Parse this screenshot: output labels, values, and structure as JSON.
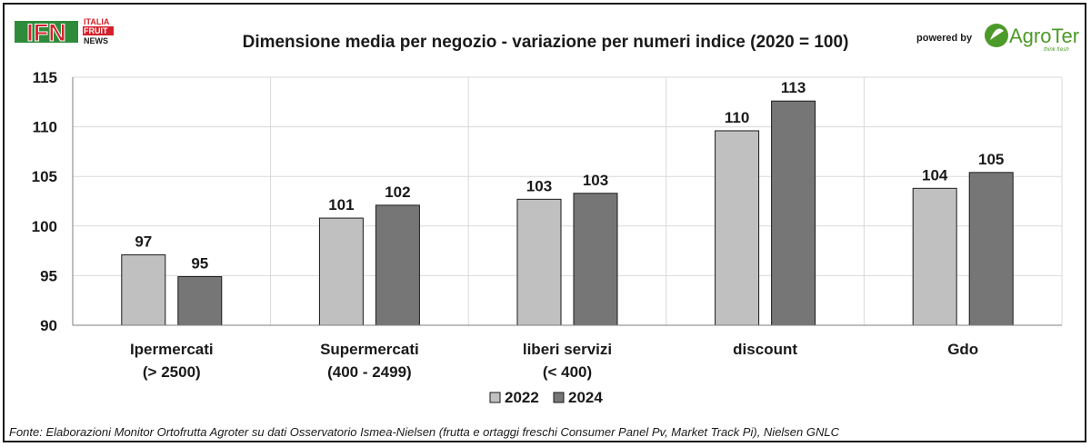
{
  "logo_left": {
    "letters": "IFN",
    "lines": [
      "ITALIA",
      "FRUIT",
      "NEWS"
    ],
    "colors": {
      "red": "#d4202a",
      "green": "#2e8b3a"
    }
  },
  "logo_right": {
    "powered_by": "powered by",
    "brand": "AgroTer",
    "tagline": "think fresh",
    "color": "#4c9a2a"
  },
  "source_note": "Fonte: Elaborazioni Monitor Ortofrutta Agroter su dati Osservatorio Ismea-Nielsen (frutta e ortaggi freschi  Consumer Panel Pv, Market Track Pi), Nielsen GNLC",
  "chart_data": {
    "type": "bar",
    "title": "Dimensione media per negozio - variazione per numeri indice (2020 = 100)",
    "categories": [
      [
        "Ipermercati",
        "(> 2500)"
      ],
      [
        "Supermercati",
        "(400 - 2499)"
      ],
      [
        "liberi servizi",
        "(< 400)"
      ],
      [
        "discount"
      ],
      [
        "Gdo"
      ]
    ],
    "series": [
      {
        "name": "2022",
        "color": "#c0c0c0",
        "values": [
          97.1,
          100.8,
          102.7,
          109.6,
          103.8
        ],
        "labels": [
          "97",
          "101",
          "103",
          "110",
          "104"
        ]
      },
      {
        "name": "2024",
        "color": "#767676",
        "values": [
          94.9,
          102.1,
          103.3,
          112.6,
          105.4
        ],
        "labels": [
          "95",
          "102",
          "103",
          "113",
          "105"
        ]
      }
    ],
    "ylim": [
      90,
      115
    ],
    "yticks": [
      "90",
      "95",
      "100",
      "105",
      "110",
      "115"
    ],
    "grid": true,
    "legend": "bottom"
  }
}
